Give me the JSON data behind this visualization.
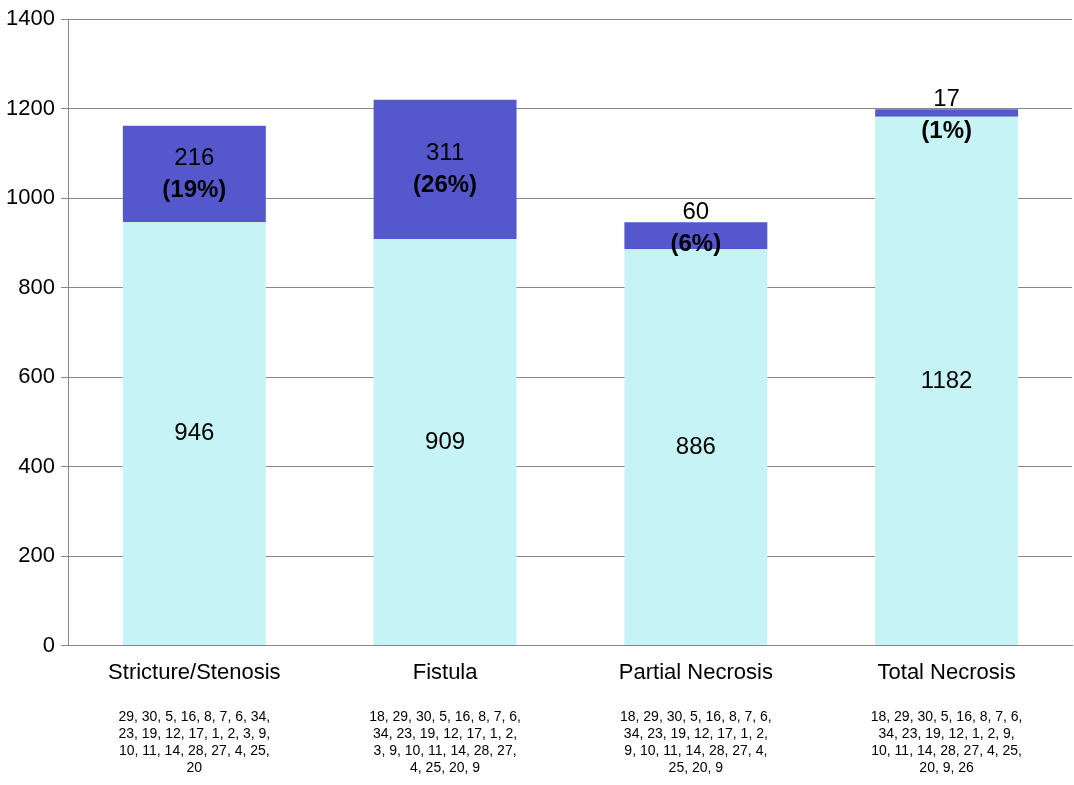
{
  "chart_data": {
    "type": "bar",
    "stacked": true,
    "categories": [
      "Stricture/Stenosis",
      "Fistula",
      "Partial Necrosis",
      "Total Necrosis"
    ],
    "series": [
      {
        "color": "#c6f3f5",
        "values": [
          946,
          909,
          886,
          1182
        ],
        "value_labels": [
          "946",
          "909",
          "886",
          "1182"
        ]
      },
      {
        "color": "#5458cc",
        "values": [
          216,
          311,
          60,
          17
        ],
        "value_labels": [
          "216 (19%)",
          "311 (26%)",
          "60 (6%)",
          "17 (1%)"
        ]
      }
    ],
    "ylim": [
      0,
      1400
    ],
    "yticks": [
      0,
      200,
      400,
      600,
      800,
      1000,
      1200,
      1400
    ],
    "grid": "y",
    "legend": false,
    "annotations": [
      "29, 30, 5, 16, 8, 7, 6, 34, 23, 19, 12, 17, 1, 2, 3, 9, 10, 11, 14, 28, 27, 4, 25, 20",
      "18, 29, 30, 5, 16, 8, 7, 6, 34, 23, 19, 12, 17, 1, 2, 3, 9, 10, 11, 14, 28, 27, 4, 25, 20, 9",
      "18, 29, 30, 5, 16, 8, 7, 6, 34, 23, 19, 12, 17, 1, 2, 9, 10, 11, 14, 28, 27, 4, 25, 20, 9",
      "18, 29, 30, 5, 16, 8, 7, 6, 34, 23, 19, 12, 1, 2, 9, 10, 11, 14, 28, 27, 4, 25, 20, 9, 26"
    ]
  }
}
